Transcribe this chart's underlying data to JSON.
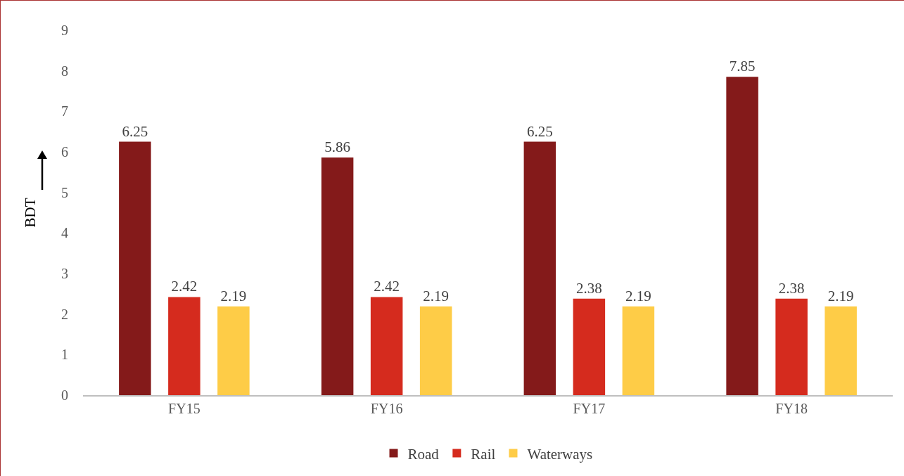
{
  "chart_data": {
    "type": "bar",
    "ylabel": "BDT",
    "categories": [
      "FY15",
      "FY16",
      "FY17",
      "FY18"
    ],
    "series": [
      {
        "name": "Road",
        "color": "#841a1a",
        "values": [
          6.25,
          5.86,
          6.25,
          7.85
        ]
      },
      {
        "name": "Rail",
        "color": "#d52b1e",
        "values": [
          2.42,
          2.42,
          2.38,
          2.38
        ]
      },
      {
        "name": "Waterways",
        "color": "#fecc47",
        "values": [
          2.19,
          2.19,
          2.19,
          2.19
        ]
      }
    ],
    "ylim": [
      0,
      9
    ],
    "yticks": [
      0,
      1,
      2,
      3,
      4,
      5,
      6,
      7,
      8,
      9
    ],
    "grid": false,
    "legend": "bottom",
    "data_labels": true
  }
}
